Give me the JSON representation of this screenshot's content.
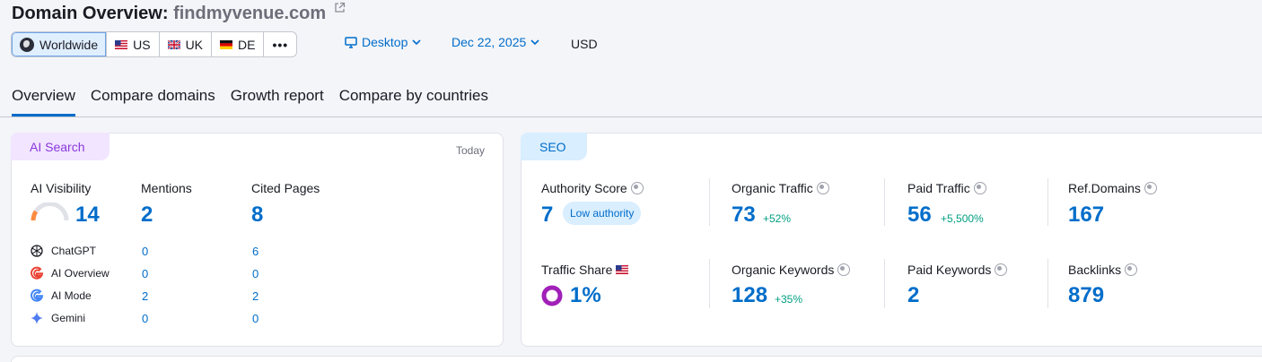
{
  "header": {
    "title_prefix": "Domain Overview:",
    "domain": "findmyvenue.com"
  },
  "regions": [
    {
      "label": "Worldwide",
      "icon": "globe-icon",
      "active": true
    },
    {
      "label": "US",
      "icon": "us-flag-icon"
    },
    {
      "label": "UK",
      "icon": "uk-flag-icon"
    },
    {
      "label": "DE",
      "icon": "de-flag-icon"
    },
    {
      "label": "•••",
      "icon": "more-icon"
    }
  ],
  "filters": {
    "device": "Desktop",
    "date": "Dec 22, 2025",
    "currency": "USD"
  },
  "tabs": [
    "Overview",
    "Compare domains",
    "Growth report",
    "Compare by countries"
  ],
  "ai_search": {
    "pill": "AI Search",
    "period": "Today",
    "metrics": [
      {
        "label": "AI Visibility",
        "value": "14"
      },
      {
        "label": "Mentions",
        "value": "2"
      },
      {
        "label": "Cited Pages",
        "value": "8"
      }
    ],
    "sources": [
      {
        "name": "ChatGPT",
        "icon": "chatgpt-icon",
        "mentions": "0",
        "cited": "6"
      },
      {
        "name": "AI Overview",
        "icon": "google-icon",
        "mentions": "0",
        "cited": "0"
      },
      {
        "name": "AI Mode",
        "icon": "google-icon",
        "mentions": "2",
        "cited": "2"
      },
      {
        "name": "Gemini",
        "icon": "gemini-icon",
        "mentions": "0",
        "cited": "0"
      }
    ]
  },
  "seo": {
    "pill": "SEO",
    "authority_score": {
      "label": "Authority Score",
      "value": "7",
      "badge": "Low authority"
    },
    "organic_traffic": {
      "label": "Organic Traffic",
      "value": "73",
      "delta": "+52%"
    },
    "paid_traffic": {
      "label": "Paid Traffic",
      "value": "56",
      "delta": "+5,500%"
    },
    "ref_domains": {
      "label": "Ref.Domains",
      "value": "167"
    },
    "traffic_share": {
      "label": "Traffic Share",
      "value": "1%"
    },
    "organic_keywords": {
      "label": "Organic Keywords",
      "value": "128",
      "delta": "+35%"
    },
    "paid_keywords": {
      "label": "Paid Keywords",
      "value": "2"
    },
    "backlinks": {
      "label": "Backlinks",
      "value": "879"
    }
  },
  "colors": {
    "accent": "#006dca",
    "ai_accent": "#8b38dc",
    "positive": "#009f81",
    "traffic_share_ring": "#a020b8"
  }
}
